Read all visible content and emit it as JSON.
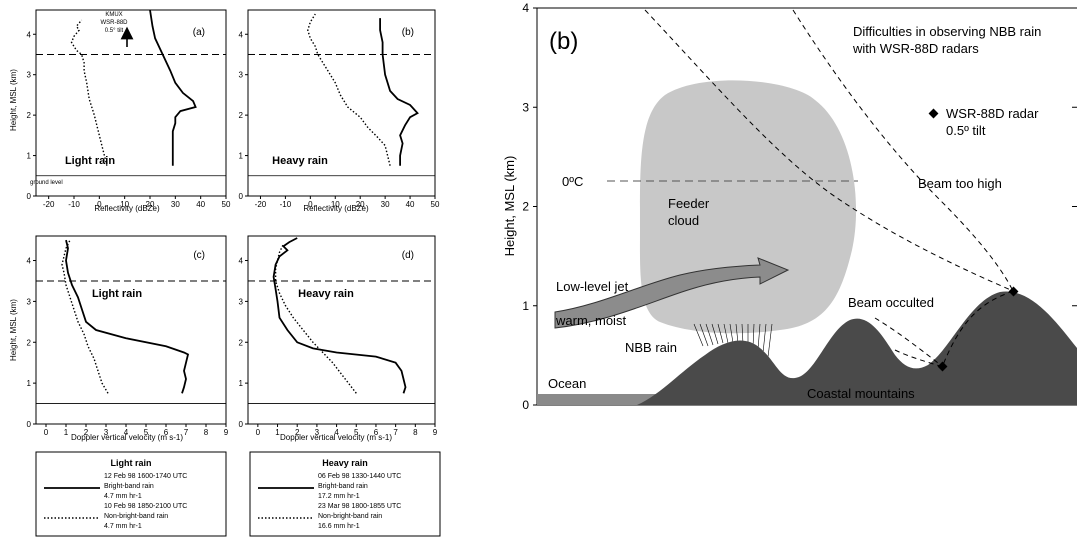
{
  "chart_data": [
    {
      "id": "a",
      "type": "line",
      "panel_label": "(a)",
      "xlabel": "Reflectivity (dBZe)",
      "ylabel": "Height, MSL (km)",
      "xlim": [
        -25,
        50
      ],
      "ylim": [
        0,
        4.6
      ],
      "xticks": [
        "-20",
        "-10",
        "0",
        "10",
        "20",
        "30",
        "40",
        "50"
      ],
      "yticks": [
        "0",
        "1",
        "2",
        "3",
        "4"
      ],
      "rain_label": "Light rain",
      "extra_labels": {
        "ground": "ground level",
        "radar_line1": "KMUX",
        "radar_line2": "WSR-88D",
        "radar_line3": "0.5° tilt"
      },
      "dashed_level_km": 3.5,
      "ground_level_km": 0.5,
      "series": [
        {
          "style": "solid",
          "x": [
            29,
            29,
            29,
            29,
            30,
            30,
            32,
            38,
            37,
            33,
            30,
            28,
            25,
            22,
            21,
            20
          ],
          "y": [
            0.75,
            1.0,
            1.4,
            1.6,
            1.8,
            1.95,
            2.1,
            2.2,
            2.35,
            2.55,
            2.8,
            3.1,
            3.5,
            3.9,
            4.2,
            4.6
          ]
        },
        {
          "style": "dotted",
          "x": [
            3,
            2,
            0,
            -2,
            -4,
            -5,
            -6,
            -6,
            -7,
            -9,
            -10,
            -11,
            -10,
            -8,
            -9,
            -7
          ],
          "y": [
            0.75,
            1.0,
            1.5,
            2.0,
            2.4,
            2.8,
            3.1,
            3.3,
            3.5,
            3.6,
            3.7,
            3.8,
            3.95,
            4.1,
            4.2,
            4.35
          ]
        }
      ]
    },
    {
      "id": "b",
      "type": "line",
      "panel_label": "(b)",
      "xlabel": "Reflectivity (dBZe)",
      "ylabel": "",
      "xlim": [
        -25,
        50
      ],
      "ylim": [
        0,
        4.6
      ],
      "xticks": [
        "-20",
        "-10",
        "0",
        "10",
        "20",
        "30",
        "40",
        "50"
      ],
      "yticks": [
        "0",
        "1",
        "2",
        "3",
        "4"
      ],
      "rain_label": "Heavy rain",
      "dashed_level_km": 3.5,
      "ground_level_km": 0.5,
      "series": [
        {
          "style": "solid",
          "x": [
            36,
            36,
            37,
            36,
            38,
            40,
            43,
            40,
            35,
            32,
            30,
            29,
            29,
            28,
            28
          ],
          "y": [
            0.75,
            1.0,
            1.3,
            1.5,
            1.75,
            1.95,
            2.05,
            2.25,
            2.4,
            2.6,
            3.0,
            3.5,
            3.8,
            4.1,
            4.4
          ]
        },
        {
          "style": "dotted",
          "x": [
            32,
            31,
            30,
            27,
            23,
            20,
            15,
            12,
            10,
            8,
            6,
            3,
            2,
            0,
            -1,
            0,
            2
          ],
          "y": [
            0.75,
            1.0,
            1.25,
            1.45,
            1.7,
            1.95,
            2.2,
            2.5,
            2.8,
            3.0,
            3.2,
            3.5,
            3.7,
            3.9,
            4.1,
            4.3,
            4.5
          ]
        }
      ]
    },
    {
      "id": "c",
      "type": "line",
      "panel_label": "(c)",
      "xlabel": "Doppler vertical velocity (m s-1)",
      "ylabel": "Height, MSL (km)",
      "xlim": [
        -0.5,
        9
      ],
      "ylim": [
        0,
        4.6
      ],
      "xticks": [
        "0",
        "1",
        "2",
        "3",
        "4",
        "5",
        "6",
        "7",
        "8",
        "9"
      ],
      "yticks": [
        "0",
        "1",
        "2",
        "3",
        "4"
      ],
      "rain_label": "Light rain",
      "dashed_level_km": 3.5,
      "ground_level_km": 0.5,
      "series": [
        {
          "style": "solid",
          "x": [
            6.8,
            6.9,
            7.0,
            6.9,
            7.0,
            7.1,
            6.9,
            6.0,
            4.0,
            2.5,
            2.0,
            1.8,
            1.6,
            1.3,
            1.1,
            1.0,
            1.1,
            1.0
          ],
          "y": [
            0.75,
            0.9,
            1.1,
            1.3,
            1.5,
            1.7,
            1.75,
            1.9,
            2.1,
            2.3,
            2.5,
            2.8,
            3.1,
            3.4,
            3.7,
            4.0,
            4.3,
            4.5
          ]
        },
        {
          "style": "dotted",
          "x": [
            3.1,
            2.8,
            2.6,
            2.4,
            2.1,
            1.9,
            1.6,
            1.4,
            1.2,
            1.0,
            0.9,
            0.8,
            0.9,
            1.0,
            1.1,
            1.2
          ],
          "y": [
            0.75,
            1.0,
            1.3,
            1.6,
            1.9,
            2.2,
            2.5,
            2.8,
            3.1,
            3.4,
            3.7,
            3.9,
            4.1,
            4.3,
            4.4,
            4.5
          ]
        }
      ]
    },
    {
      "id": "d",
      "type": "line",
      "panel_label": "(d)",
      "xlabel": "Doppler vertical velocity (m s-1)",
      "ylabel": "",
      "xlim": [
        -0.5,
        9
      ],
      "ylim": [
        0,
        4.6
      ],
      "xticks": [
        "0",
        "1",
        "2",
        "3",
        "4",
        "5",
        "6",
        "7",
        "8",
        "9"
      ],
      "yticks": [
        "0",
        "1",
        "2",
        "3",
        "4"
      ],
      "rain_label": "Heavy rain",
      "dashed_level_km": 3.5,
      "ground_level_km": 0.5,
      "series": [
        {
          "style": "solid",
          "x": [
            7.4,
            7.5,
            7.4,
            7.3,
            7.0,
            6.0,
            4.0,
            2.8,
            2.0,
            1.5,
            1.1,
            1.0,
            0.9,
            0.8,
            0.9,
            1.1,
            1.5,
            1.3,
            1.6,
            2.0
          ],
          "y": [
            0.75,
            0.9,
            1.1,
            1.3,
            1.5,
            1.65,
            1.75,
            1.85,
            2.0,
            2.3,
            2.6,
            3.0,
            3.3,
            3.6,
            3.9,
            4.1,
            4.25,
            4.35,
            4.45,
            4.55
          ]
        },
        {
          "style": "dotted",
          "x": [
            5.0,
            4.6,
            4.2,
            3.8,
            3.3,
            2.8,
            2.3,
            1.8,
            1.4,
            1.1,
            0.9,
            0.9,
            1.0,
            1.1,
            1.3
          ],
          "y": [
            0.75,
            1.0,
            1.25,
            1.5,
            1.75,
            2.0,
            2.3,
            2.6,
            2.9,
            3.2,
            3.5,
            3.8,
            4.0,
            4.2,
            4.4
          ]
        }
      ]
    },
    {
      "id": "schematic",
      "type": "other",
      "panel_label": "(b)",
      "ylabel": "Height, MSL (km)",
      "ylim": [
        0,
        4
      ],
      "yticks": [
        "0",
        "1",
        "2",
        "3",
        "4"
      ],
      "title_line1": "Difficulties in observing NBB rain",
      "title_line2": "with WSR-88D radars",
      "legend_radar_line1": "WSR-88D radar",
      "legend_radar_line2": "0.5º tilt",
      "freezing_label": "0ºC",
      "freezing_level_km": 2.2,
      "cloud_label_line1": "Feeder",
      "cloud_label_line2": "cloud",
      "jet_label_line1": "Low-level jet",
      "jet_label_line2": "warm, moist",
      "beam_high_label": "Beam too high",
      "beam_occulted_label": "Beam occulted",
      "nbb_rain_label": "NBB rain",
      "ocean_label": "Ocean",
      "mountains_label": "Coastal mountains",
      "colors": {
        "mountain": "#4a4a4a",
        "cloud": "#c8c8c8",
        "arrow": "#8c8c8c",
        "ocean": "#8a8a8a"
      }
    }
  ],
  "legends": [
    {
      "title": "Light rain",
      "entries": [
        {
          "style": "solid",
          "line1": "12 Feb 98 1600-1740 UTC",
          "line2": "Bright-band rain",
          "line3": "4.7 mm hr-1"
        },
        {
          "style": "dotted",
          "line1": "10 Feb 98 1850-2100 UTC",
          "line2": "Non-bright-band rain",
          "line3": "4.7 mm hr-1"
        }
      ]
    },
    {
      "title": "Heavy rain",
      "entries": [
        {
          "style": "solid",
          "line1": "06 Feb 98 1330-1440 UTC",
          "line2": "Bright-band rain",
          "line3": "17.2 mm hr-1"
        },
        {
          "style": "dotted",
          "line1": "23 Mar 98 1800-1855 UTC",
          "line2": "Non-bright-band rain",
          "line3": "16.6 mm hr-1"
        }
      ]
    }
  ]
}
